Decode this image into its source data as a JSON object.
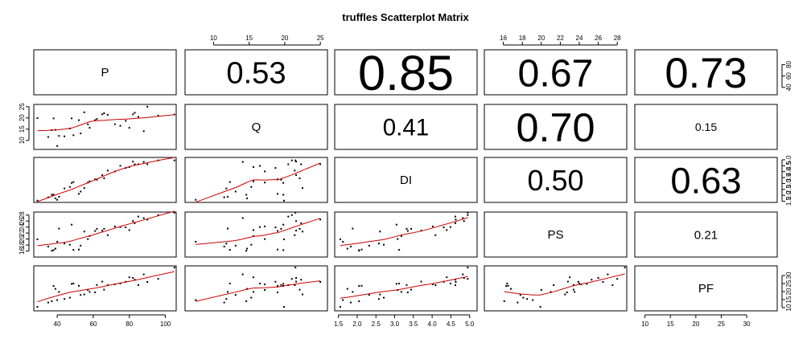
{
  "chart_data": {
    "type": "scatter",
    "title": "truffles Scatterplot Matrix",
    "variables": [
      "P",
      "Q",
      "DI",
      "PS",
      "PF"
    ],
    "ranges": {
      "P": [
        27,
        106
      ],
      "Q": [
        6,
        26
      ],
      "DI": [
        1.4,
        5.2
      ],
      "PS": [
        14,
        29
      ],
      "PF": [
        8,
        36
      ]
    },
    "axis_ticks": {
      "P": [
        40,
        60,
        80,
        100
      ],
      "Q": [
        10,
        15,
        20,
        25
      ],
      "DI": [
        1.5,
        2.0,
        2.5,
        3.0,
        3.5,
        4.0,
        4.5,
        5.0
      ],
      "PS": [
        16,
        18,
        20,
        22,
        24,
        26,
        28
      ],
      "PF": [
        10,
        15,
        20,
        25,
        30
      ]
    },
    "tick_labels": {
      "P": [
        "40",
        "60",
        "80",
        "100"
      ],
      "Q": [
        "10",
        "15",
        "20",
        "25"
      ],
      "DI": [
        "1.5",
        "2.0",
        "2.5",
        "3.0",
        "3.5",
        "4.0",
        "4.5",
        "5.0"
      ],
      "PS": [
        "16",
        "18",
        "20",
        "22",
        "24",
        "26",
        "28"
      ],
      "PF": [
        "10",
        "15",
        "20",
        "25",
        "30"
      ]
    },
    "axes": {
      "top": [
        {
          "col": 1,
          "var": "Q"
        },
        {
          "col": 3,
          "var": "PS"
        }
      ],
      "bottom": [
        {
          "col": 0,
          "var": "P"
        },
        {
          "col": 2,
          "var": "DI"
        },
        {
          "col": 4,
          "var": "PF"
        }
      ],
      "left": [
        {
          "row": 1,
          "var": "Q"
        },
        {
          "row": 3,
          "var": "PS"
        }
      ],
      "right": [
        {
          "row": 0,
          "var": "P"
        },
        {
          "row": 2,
          "var": "DI"
        },
        {
          "row": 4,
          "var": "PF"
        }
      ]
    },
    "right_ticks_P": [
      40,
      60,
      80
    ],
    "correlations": [
      {
        "row": 0,
        "col": 1,
        "label": "0.53",
        "value": 0.53
      },
      {
        "row": 0,
        "col": 2,
        "label": "0.85",
        "value": 0.85
      },
      {
        "row": 0,
        "col": 3,
        "label": "0.67",
        "value": 0.67
      },
      {
        "row": 0,
        "col": 4,
        "label": "0.73",
        "value": 0.73
      },
      {
        "row": 1,
        "col": 2,
        "label": "0.41",
        "value": 0.41
      },
      {
        "row": 1,
        "col": 3,
        "label": "0.70",
        "value": 0.7
      },
      {
        "row": 1,
        "col": 4,
        "label": "0.15",
        "value": 0.15
      },
      {
        "row": 2,
        "col": 3,
        "label": "0.50",
        "value": 0.5
      },
      {
        "row": 2,
        "col": 4,
        "label": "0.63",
        "value": 0.63
      },
      {
        "row": 3,
        "col": 4,
        "label": "0.21",
        "value": 0.21
      }
    ],
    "observations": {
      "P": [
        29,
        35,
        37,
        38,
        39,
        40,
        41,
        44,
        47,
        48,
        49,
        52,
        53,
        55,
        57,
        58,
        61,
        62,
        65,
        66,
        68,
        72,
        75,
        78,
        80,
        82,
        83,
        85,
        88,
        90,
        96,
        105
      ],
      "Q": [
        19.9,
        11.5,
        14.6,
        19.8,
        14.7,
        7.5,
        12.0,
        11.8,
        15.3,
        19.8,
        12.3,
        19.0,
        13.1,
        22.5,
        17.2,
        15.6,
        19.0,
        19.5,
        21.6,
        22.1,
        21.4,
        17.2,
        16.5,
        18.7,
        15.6,
        21.6,
        22.3,
        20.5,
        14.1,
        25.0,
        21.0,
        21.5
      ],
      "DI": [
        1.55,
        1.83,
        2.05,
        2.05,
        1.74,
        1.62,
        1.88,
        2.58,
        2.71,
        3.05,
        3.12,
        2.12,
        2.32,
        2.61,
        3.08,
        3.18,
        3.35,
        3.32,
        3.71,
        3.44,
        4.09,
        4.02,
        4.49,
        4.31,
        4.39,
        4.85,
        4.62,
        4.62,
        4.82,
        4.63,
        4.95,
        4.95
      ],
      "PS": [
        19.9,
        17.5,
        16.1,
        16.3,
        16.8,
        19.1,
        23.5,
        18.5,
        18.1,
        24.8,
        16.4,
        16.5,
        17.8,
        22.5,
        20.0,
        21.0,
        22.7,
        23.4,
        22.8,
        23.4,
        21.3,
        24.2,
        24.0,
        23.9,
        23.0,
        26.0,
        25.3,
        27.5,
        27.0,
        26.5,
        28.0,
        28.8
      ],
      "PF": [
        10.5,
        13.2,
        14.0,
        23.5,
        21.7,
        14.7,
        19.8,
        15.4,
        16.2,
        24.8,
        25.0,
        23.6,
        17.9,
        18.2,
        21.0,
        19.8,
        19.5,
        24.1,
        26.2,
        21.2,
        24.0,
        24.5,
        25.0,
        26.1,
        28.9,
        28.5,
        27.4,
        24.0,
        30.7,
        26.0,
        27.9,
        35.0
      ]
    },
    "point_color": "#000000",
    "smooth_color": "#cc0000",
    "frame_color": "#000000"
  }
}
